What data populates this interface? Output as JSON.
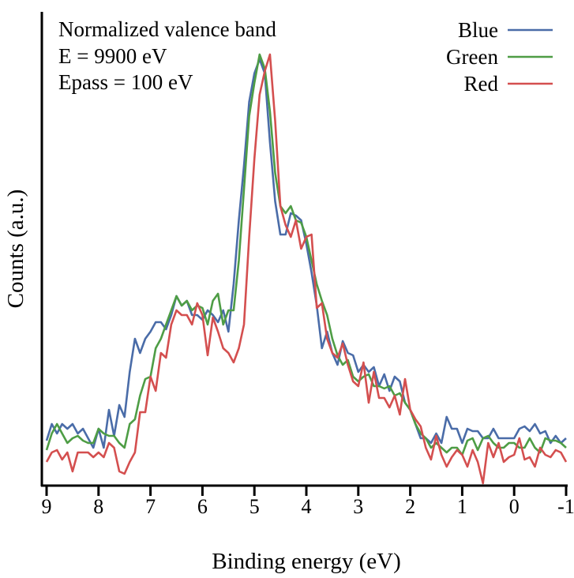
{
  "chart_data": {
    "type": "line",
    "title": "",
    "xlabel": "Binding energy (eV)",
    "ylabel": "Counts (a.u.)",
    "xlim": [
      9,
      -1
    ],
    "ylim": [
      0,
      100
    ],
    "x_reversed": true,
    "grid": false,
    "xticks": [
      "9",
      "8",
      "7",
      "6",
      "5",
      "4",
      "3",
      "2",
      "1",
      "0",
      "-1"
    ],
    "xtick_values": [
      9,
      8,
      7,
      6,
      5,
      4,
      3,
      2,
      1,
      0,
      -1
    ],
    "annotations": [
      "Normalized valence band",
      "E = 9900 eV",
      "Epass = 100 eV"
    ],
    "legend_position": "top-right",
    "x": {
      "start": 9.0,
      "step": -0.1,
      "count": 101
    },
    "series": [
      {
        "name": "Blue",
        "color": "#4a6ca8",
        "values": [
          9.5,
          13,
          11,
          13,
          12,
          13,
          11,
          12,
          10,
          8,
          12,
          8,
          16,
          10.5,
          17,
          14.5,
          24,
          31,
          28,
          31,
          32.5,
          34.5,
          34.5,
          33,
          36,
          40,
          38,
          39,
          36,
          36,
          35,
          37,
          36,
          34.5,
          37,
          32.5,
          42.5,
          56,
          67.5,
          81,
          87,
          90,
          87,
          72.5,
          60,
          53,
          53,
          57.5,
          57,
          56,
          51,
          45,
          38,
          29,
          32.5,
          28,
          25.5,
          30.5,
          28,
          27.5,
          24,
          25.5,
          24,
          25,
          21,
          23.5,
          20,
          23,
          22,
          17.5,
          16,
          13,
          10,
          10,
          9,
          11,
          9,
          14.5,
          12,
          12,
          9,
          12,
          11.5,
          11.5,
          10,
          10,
          12,
          10,
          10,
          10,
          10,
          12,
          12.5,
          11.5,
          13,
          11,
          11.5,
          9,
          10.5,
          9,
          10
        ]
      },
      {
        "name": "Green",
        "color": "#4e9d45",
        "values": [
          7.5,
          11,
          13,
          11,
          9,
          10,
          10.5,
          9.5,
          9,
          9,
          12,
          11,
          10.5,
          10.5,
          9,
          8,
          13,
          14,
          19,
          22.5,
          23,
          29,
          31,
          34,
          37,
          40,
          38,
          39,
          37,
          38,
          37.5,
          34,
          39,
          40.5,
          34,
          37,
          37,
          47.5,
          62.5,
          78,
          85,
          91,
          88,
          79,
          66,
          59,
          57.5,
          59,
          56,
          55.5,
          52.5,
          47.5,
          42.5,
          39,
          36,
          31,
          27.5,
          25.5,
          26.5,
          23,
          22,
          23,
          23.5,
          21,
          21,
          20.5,
          21,
          19,
          19.5,
          17.5,
          16,
          13,
          11,
          10,
          8,
          9,
          8,
          7,
          8,
          8,
          6.5,
          9.5,
          10,
          7.5,
          10,
          10.5,
          9,
          8,
          8,
          9,
          9,
          8,
          8,
          10,
          8,
          7,
          10,
          9.5,
          9.5,
          9,
          8
        ]
      },
      {
        "name": "Red",
        "color": "#d44f4f",
        "values": [
          5,
          7,
          7.5,
          5.5,
          7,
          3,
          7,
          7,
          7,
          6,
          7,
          6,
          9,
          8,
          3,
          2.5,
          5,
          7,
          15.5,
          15.5,
          23,
          20,
          28,
          27,
          34,
          37,
          36,
          36,
          34,
          38.5,
          36,
          27.5,
          35.5,
          32.5,
          29,
          28,
          26,
          29,
          34,
          52.5,
          69,
          82.5,
          87.5,
          91,
          77,
          59,
          55,
          52.5,
          56,
          50,
          52.5,
          53,
          37.5,
          38.5,
          31,
          28,
          27,
          30,
          25.5,
          22,
          21,
          26,
          17.5,
          24,
          18.5,
          18.5,
          16.5,
          19,
          15,
          22.5,
          16,
          14,
          12.5,
          8,
          5.5,
          10.5,
          6.5,
          4,
          6,
          7.5,
          6.5,
          4,
          7.5,
          5,
          0.5,
          9,
          6,
          9,
          5,
          6,
          6.5,
          10,
          5.5,
          6,
          4,
          8,
          6.5,
          6,
          7.5,
          7,
          5
        ]
      }
    ]
  }
}
